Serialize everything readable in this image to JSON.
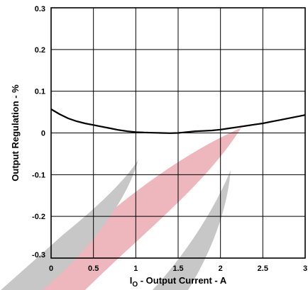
{
  "chart_data": {
    "type": "line",
    "xlabel_main": "I",
    "xlabel_sub": "O",
    "xlabel_rest": " - Output Current - A",
    "ylabel": "Output Regulation - %",
    "xlim": [
      0,
      3
    ],
    "ylim": [
      -0.3,
      0.3
    ],
    "grid": true,
    "x_ticks": [
      0,
      0.5,
      1,
      1.5,
      2,
      2.5,
      3
    ],
    "x_tick_labels": [
      "0",
      "0.5",
      "1",
      "1.5",
      "2",
      "2.5",
      "3"
    ],
    "y_ticks": [
      0.3,
      0.2,
      0.1,
      0,
      -0.1,
      -0.2,
      -0.3
    ],
    "y_tick_labels": [
      "0.3",
      "0.2",
      "0.1",
      "0",
      "-0.1",
      "-0.2",
      "-0.3"
    ],
    "series": [
      {
        "x": [
          0,
          0.1,
          0.2,
          0.3,
          0.4,
          0.5,
          0.6,
          0.7,
          0.8,
          0.9,
          1.0,
          1.1,
          1.2,
          1.3,
          1.4,
          1.5,
          1.6,
          1.7,
          1.8,
          1.9,
          2.0,
          2.1,
          2.2,
          2.3,
          2.4,
          2.5,
          2.6,
          2.7,
          2.8,
          2.9,
          3.0
        ],
        "y": [
          0.057,
          0.045,
          0.035,
          0.028,
          0.023,
          0.019,
          0.015,
          0.011,
          0.007,
          0.004,
          0.002,
          0.001,
          0.0005,
          0.0,
          -0.0005,
          0.0,
          0.002,
          0.004,
          0.005,
          0.006,
          0.008,
          0.011,
          0.014,
          0.017,
          0.02,
          0.023,
          0.027,
          0.031,
          0.035,
          0.039,
          0.043
        ]
      }
    ],
    "line_color": "#000000"
  },
  "watermark": {
    "red": "#e8a0a8",
    "gray": "#b5b5b5"
  }
}
